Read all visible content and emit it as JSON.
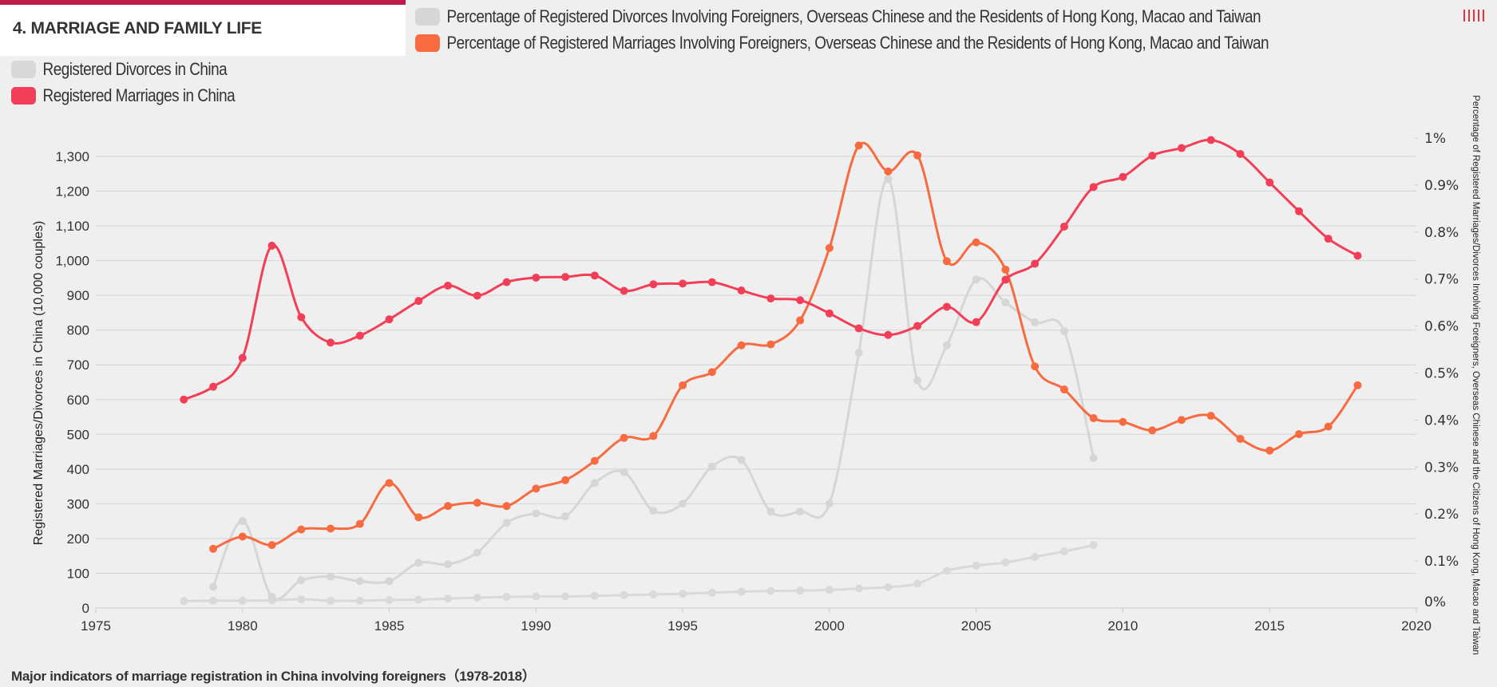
{
  "header": {
    "section_title": "4. MARRIAGE AND FAMILY LIFE",
    "accent_color": "#be1a48"
  },
  "menu_icon": "menu-stripes-icon",
  "caption": "Major indicators of marriage registration in China involving foreigners（1978-2018）",
  "chart_data": {
    "type": "line",
    "legend": [
      {
        "label": "Percentage of Registered Divorces Involving Foreigners, Overseas Chinese and the Residents of Hong Kong, Macao and Taiwan",
        "color": "#d6d6d6"
      },
      {
        "label": "Percentage of Registered Marriages Involving Foreigners, Overseas Chinese and the Residents of Hong Kong, Macao and Taiwan",
        "color": "#f86a3f"
      },
      {
        "label": "Registered Divorces in China",
        "color": "#d9d9d9"
      },
      {
        "label": "Registered Marriages in China",
        "color": "#f23f57"
      }
    ],
    "legend_position": "top-left",
    "ylabel": "Registered Marriages/Divorces in China (10,000 couples)",
    "y2label": "Percentage of Registered Marriages/Divorces Involving Foreigners, Overseas Chinese and the Citizens of Hong Kong, Macao and Taiwan",
    "xlim": [
      1975,
      2020
    ],
    "x_ticks": [
      "1975",
      "1980",
      "1985",
      "1990",
      "1995",
      "2000",
      "2005",
      "2010",
      "2015",
      "2020"
    ],
    "ylim": [
      0,
      1300
    ],
    "y_ticks": [
      "0",
      "100",
      "200",
      "300",
      "400",
      "500",
      "600",
      "700",
      "800",
      "900",
      "1,000",
      "1,100",
      "1,200",
      "1,300"
    ],
    "y2lim": [
      0,
      1
    ],
    "y2_ticks": [
      "0%",
      "0.1%",
      "0.2%",
      "0.3%",
      "0.4%",
      "0.5%",
      "0.6%",
      "0.7%",
      "0.8%",
      "0.9%",
      "1%"
    ],
    "grid": true,
    "series": [
      {
        "name": "Registered Marriages in China",
        "axis": "left",
        "color": "#f23f57",
        "x_start": 1978,
        "values": [
          600,
          637,
          720,
          1043,
          837,
          764,
          784,
          831,
          884,
          928,
          899,
          938,
          951,
          953,
          957,
          913,
          932,
          934,
          938,
          914,
          891,
          886,
          848,
          805,
          786,
          812,
          867,
          823,
          945,
          991,
          1098,
          1212,
          1241,
          1302,
          1324,
          1347,
          1307,
          1225,
          1142,
          1063,
          1014
        ]
      },
      {
        "name": "Registered Divorces in China",
        "axis": "left",
        "color": "#d9d9d9",
        "x_start": 1978,
        "values": [
          20,
          21,
          21,
          22,
          25,
          21,
          21,
          23,
          24,
          27,
          30,
          32,
          33,
          33,
          35,
          37,
          39,
          41,
          44,
          47,
          49,
          50,
          52,
          56,
          60,
          70,
          107,
          122,
          131,
          147,
          163,
          181
        ]
      },
      {
        "name": "Percentage of Registered Marriages Involving Foreigners, Overseas Chinese and the Residents of Hong Kong, Macao and Taiwan",
        "axis": "right",
        "color": "#f86a3f",
        "x_start": 1979,
        "values": [
          0.126,
          0.152,
          0.134,
          0.167,
          0.169,
          0.179,
          0.266,
          0.193,
          0.217,
          0.224,
          0.217,
          0.254,
          0.272,
          0.313,
          0.362,
          0.366,
          0.474,
          0.502,
          0.559,
          0.561,
          0.612,
          0.766,
          0.984,
          0.929,
          0.963,
          0.738,
          0.778,
          0.72,
          0.514,
          0.465,
          0.404,
          0.396,
          0.378,
          0.4,
          0.409,
          0.36,
          0.335,
          0.37,
          0.386,
          0.474
        ]
      },
      {
        "name": "Percentage of Registered Divorces Involving Foreigners, Overseas Chinese and the Residents of Hong Kong, Macao and Taiwan",
        "axis": "right",
        "color": "#d6d6d6",
        "x_start": 1979,
        "values": [
          0.045,
          0.185,
          0.024,
          0.059,
          0.067,
          0.057,
          0.057,
          0.096,
          0.093,
          0.118,
          0.181,
          0.201,
          0.195,
          0.266,
          0.289,
          0.207,
          0.222,
          0.301,
          0.315,
          0.205,
          0.205,
          0.222,
          0.543,
          0.913,
          0.484,
          0.559,
          0.699,
          0.65,
          0.608,
          0.589,
          0.319
        ]
      }
    ]
  }
}
